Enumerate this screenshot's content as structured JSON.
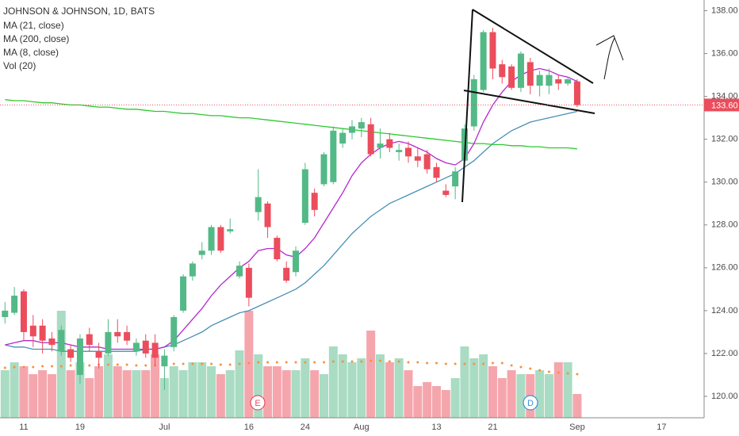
{
  "chart_data": {
    "type": "candlestick",
    "title": "JOHNSON & JOHNSON, 1D, BATS",
    "categories": [
      null,
      null,
      "11",
      null,
      null,
      null,
      null,
      null,
      "19",
      null,
      null,
      null,
      null,
      null,
      null,
      null,
      null,
      "Jul",
      null,
      null,
      null,
      null,
      null,
      null,
      null,
      null,
      "16",
      null,
      null,
      null,
      null,
      null,
      "24",
      null,
      null,
      null,
      null,
      null,
      "Aug",
      null,
      null,
      null,
      null,
      null,
      null,
      null,
      "13",
      null,
      null,
      null,
      null,
      null,
      "21",
      null,
      null,
      null,
      null,
      null,
      null,
      null,
      null,
      "Sep",
      null,
      null,
      null,
      null,
      null,
      null,
      null,
      null,
      "17"
    ],
    "open": [
      123.7,
      123.9,
      124.9,
      123.3,
      123.3,
      122.7,
      122.1,
      122.2,
      121.0,
      122.9,
      122.1,
      122.0,
      123.0,
      123.0,
      122.1,
      122.6,
      122.5,
      121.4,
      122.3,
      124.0,
      125.6,
      126.6,
      126.8,
      127.9,
      127.7,
      125.6,
      126.0,
      128.6,
      129.0,
      127.4,
      126.0,
      125.8,
      128.1,
      129.5,
      129.9,
      130.0,
      131.8,
      132.3,
      132.5,
      132.7,
      131.6,
      132.0,
      131.4,
      131.6,
      131.2,
      131.3,
      130.7,
      129.6,
      129.8,
      131.0,
      132.6,
      134.3,
      137.0,
      135.5,
      135.4,
      134.4,
      135.6,
      134.5,
      134.5,
      134.8,
      134.6,
      134.7,
      null,
      null,
      null,
      null,
      null,
      null,
      null,
      null,
      null
    ],
    "high": [
      124.4,
      125.1,
      125.0,
      123.8,
      123.6,
      123.0,
      123.3,
      122.4,
      122.9,
      123.2,
      122.5,
      123.6,
      123.6,
      123.3,
      122.7,
      122.9,
      122.9,
      122.2,
      123.8,
      125.7,
      126.3,
      127.2,
      128.0,
      128.0,
      128.3,
      126.3,
      126.2,
      130.6,
      129.1,
      127.5,
      126.3,
      127.0,
      130.9,
      129.7,
      131.4,
      132.6,
      132.5,
      132.9,
      133.0,
      133.0,
      132.5,
      132.3,
      131.8,
      131.9,
      131.6,
      131.5,
      130.9,
      129.9,
      130.7,
      132.7,
      135.0,
      137.1,
      137.2,
      135.7,
      135.5,
      136.1,
      135.8,
      135.2,
      135.3,
      135.0,
      134.9,
      134.8,
      null,
      null,
      null,
      null,
      null,
      null,
      null,
      null,
      null
    ],
    "low": [
      123.4,
      123.8,
      122.6,
      122.3,
      122.0,
      122.1,
      121.9,
      121.6,
      120.6,
      122.1,
      121.3,
      121.9,
      122.5,
      122.4,
      121.9,
      121.8,
      121.4,
      120.3,
      122.1,
      123.9,
      125.4,
      126.4,
      126.6,
      126.7,
      127.6,
      125.5,
      124.2,
      128.2,
      127.4,
      126.3,
      125.3,
      125.6,
      128.0,
      128.4,
      129.8,
      129.9,
      131.6,
      132.0,
      132.1,
      131.2,
      131.1,
      131.4,
      131.0,
      130.9,
      130.7,
      130.4,
      130.0,
      129.3,
      129.2,
      130.9,
      132.4,
      134.2,
      134.8,
      134.6,
      134.3,
      134.2,
      134.1,
      134.0,
      134.1,
      134.3,
      134.5,
      133.5,
      null,
      null,
      null,
      null,
      null,
      null,
      null,
      null,
      null
    ],
    "close": [
      124.0,
      124.7,
      123.0,
      122.8,
      122.6,
      122.4,
      123.1,
      121.8,
      122.7,
      122.4,
      121.8,
      123.0,
      122.8,
      122.6,
      122.5,
      122.0,
      121.8,
      121.9,
      123.7,
      125.6,
      126.2,
      126.8,
      127.9,
      126.8,
      127.8,
      126.1,
      124.6,
      129.3,
      127.9,
      126.4,
      125.4,
      126.8,
      130.6,
      128.7,
      131.3,
      132.4,
      132.3,
      132.6,
      132.8,
      131.3,
      131.8,
      131.6,
      131.5,
      131.2,
      131.0,
      130.6,
      130.2,
      129.4,
      130.5,
      132.5,
      134.8,
      137.0,
      135.3,
      134.9,
      134.4,
      136.0,
      134.5,
      135.0,
      135.0,
      134.6,
      134.8,
      133.6,
      null,
      null,
      null,
      null,
      null,
      null,
      null,
      null,
      null
    ],
    "up_color": "#53b987",
    "down_color": "#eb4d5c",
    "ylim": [
      119.0,
      138.5
    ],
    "yticks": [
      {
        "value": 120,
        "label": "120.00"
      },
      {
        "value": 122,
        "label": "122.00"
      },
      {
        "value": 124,
        "label": "124.00"
      },
      {
        "value": 126,
        "label": "126.00"
      },
      {
        "value": 128,
        "label": "128.00"
      },
      {
        "value": 130,
        "label": "130.00"
      },
      {
        "value": 132,
        "label": "132.00"
      },
      {
        "value": 134,
        "label": "134.00"
      },
      {
        "value": 136,
        "label": "136.00"
      },
      {
        "value": 138,
        "label": "138.00"
      }
    ],
    "series": [
      {
        "name": "MA (21, close)",
        "color": "#4a8fb5",
        "values": [
          122.4,
          122.3,
          122.3,
          122.2,
          122.2,
          122.2,
          122.1,
          122.1,
          122.1,
          122.1,
          122.1,
          122.1,
          122.1,
          122.1,
          122.1,
          122.2,
          122.2,
          122.3,
          122.4,
          122.6,
          122.8,
          123.0,
          123.3,
          123.5,
          123.7,
          123.9,
          124.0,
          124.2,
          124.4,
          124.6,
          124.8,
          125.0,
          125.3,
          125.7,
          126.1,
          126.6,
          127.1,
          127.6,
          128.0,
          128.4,
          128.7,
          129.0,
          129.2,
          129.4,
          129.6,
          129.8,
          130.0,
          130.2,
          130.4,
          130.7,
          131.0,
          131.4,
          131.8,
          132.1,
          132.4,
          132.6,
          132.8,
          132.9,
          133.0,
          133.1,
          133.2,
          133.3,
          null,
          null,
          null,
          null,
          null,
          null,
          null,
          null,
          null
        ]
      },
      {
        "name": "MA (200, close)",
        "color": "#2ec92e",
        "values": [
          133.85,
          133.8,
          133.8,
          133.75,
          133.7,
          133.7,
          133.65,
          133.6,
          133.6,
          133.55,
          133.5,
          133.5,
          133.45,
          133.4,
          133.4,
          133.35,
          133.3,
          133.3,
          133.25,
          133.2,
          133.2,
          133.15,
          133.1,
          133.1,
          133.05,
          133.0,
          133.0,
          132.95,
          132.9,
          132.85,
          132.8,
          132.75,
          132.7,
          132.65,
          132.6,
          132.55,
          132.5,
          132.45,
          132.4,
          132.35,
          132.3,
          132.25,
          132.2,
          132.15,
          132.1,
          132.05,
          132.0,
          131.95,
          131.9,
          131.85,
          131.8,
          131.8,
          131.75,
          131.75,
          131.7,
          131.7,
          131.65,
          131.65,
          131.6,
          131.6,
          131.6,
          131.55,
          null,
          null,
          null,
          null,
          null,
          null,
          null,
          null,
          null
        ]
      },
      {
        "name": "MA (8, close)",
        "color": "#b526d0",
        "values": [
          122.4,
          122.5,
          122.6,
          122.6,
          122.5,
          122.5,
          122.5,
          122.4,
          122.3,
          122.3,
          122.3,
          122.2,
          122.2,
          122.2,
          122.2,
          122.2,
          122.2,
          122.3,
          122.6,
          123.1,
          123.6,
          124.1,
          124.7,
          125.2,
          125.6,
          126.0,
          126.3,
          126.8,
          126.9,
          126.9,
          126.6,
          126.5,
          126.9,
          127.4,
          128.1,
          128.8,
          129.5,
          130.3,
          130.9,
          131.3,
          131.6,
          131.8,
          131.9,
          131.8,
          131.6,
          131.4,
          131.1,
          130.9,
          130.8,
          131.1,
          131.8,
          132.8,
          133.6,
          134.2,
          134.7,
          135.0,
          135.2,
          135.3,
          135.2,
          135.0,
          134.9,
          134.7,
          null,
          null,
          null,
          null,
          null,
          null,
          null,
          null,
          null
        ]
      }
    ],
    "volume_name": "Vol (20)",
    "volume": [
      6,
      7,
      6.5,
      5.5,
      6,
      5.5,
      13.5,
      6,
      7,
      5,
      6.5,
      8,
      6.5,
      6,
      6,
      6,
      8,
      5,
      6.5,
      6,
      7,
      7,
      6.5,
      5.5,
      6,
      8.5,
      13.5,
      8,
      6.5,
      6.5,
      6,
      6,
      7.5,
      6,
      5.5,
      9,
      8,
      7,
      7.5,
      11,
      8,
      7,
      7.5,
      6,
      4,
      4.5,
      4,
      3.5,
      5,
      9,
      7.5,
      8,
      6.5,
      5,
      6,
      5.5,
      5.5,
      6,
      5.5,
      7,
      7,
      3,
      null,
      null,
      null,
      null,
      null,
      null,
      null,
      null,
      null
    ],
    "volume_ma": [
      6.3,
      6.4,
      6.4,
      6.4,
      6.5,
      6.5,
      6.5,
      6.6,
      6.6,
      6.6,
      6.7,
      6.7,
      6.7,
      6.7,
      6.6,
      6.6,
      6.6,
      6.7,
      6.8,
      6.8,
      6.8,
      6.8,
      6.8,
      6.7,
      6.7,
      6.8,
      6.9,
      7.0,
      7.0,
      7.0,
      7.0,
      7.0,
      7.0,
      7.0,
      7.0,
      7.1,
      7.1,
      7.1,
      7.1,
      7.2,
      7.2,
      7.1,
      7.1,
      7.0,
      7.0,
      6.9,
      6.9,
      6.8,
      6.8,
      6.8,
      6.8,
      6.8,
      6.9,
      6.9,
      6.6,
      6.4,
      6.2,
      6.0,
      5.8,
      5.7,
      5.6,
      5.5,
      null,
      null,
      null,
      null,
      null,
      null,
      null,
      null,
      null
    ],
    "volume_ma_color": "#f5923e",
    "volume_ylim": [
      0,
      20
    ],
    "last_price": {
      "value": 133.6,
      "label": "133.60"
    },
    "events": [
      "E",
      "D"
    ]
  }
}
